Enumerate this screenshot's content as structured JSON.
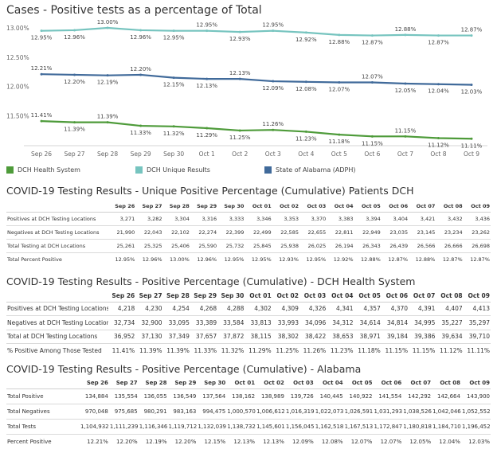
{
  "chart_title": "Cases - Positive tests as a percentage of Total",
  "chart_data": {
    "type": "line",
    "categories": [
      "Sep 26",
      "Sep 27",
      "Sep 28",
      "Sep 29",
      "Sep 30",
      "Oct 1",
      "Oct 2",
      "Oct 3",
      "Oct 4",
      "Oct 5",
      "Oct 6",
      "Oct 7",
      "Oct 8",
      "Oct 9"
    ],
    "ylabel": "",
    "y_ticks": [
      "13.00%",
      "12.50%",
      "12.00%",
      "11.50%"
    ],
    "ylim": [
      11.1,
      13.0
    ],
    "grid": false,
    "legend_position": "bottom",
    "series": [
      {
        "name": "DCH Unique Results",
        "color": "#76c4bf",
        "values": [
          12.95,
          12.96,
          13.0,
          12.96,
          12.95,
          12.95,
          12.93,
          12.95,
          12.92,
          12.88,
          12.87,
          12.88,
          12.87,
          12.87
        ],
        "labels": [
          "12.95%",
          "12.96%",
          "13.00%",
          "12.96%",
          "12.95%",
          "12.95%",
          "12.93%",
          "12.95%",
          "12.92%",
          "12.88%",
          "12.87%",
          "12.88%",
          "12.87%",
          "12.87%"
        ]
      },
      {
        "name": "State of Alabama (ADPH)",
        "color": "#406a9a",
        "values": [
          12.21,
          12.2,
          12.19,
          12.2,
          12.15,
          12.13,
          12.13,
          12.09,
          12.08,
          12.07,
          12.07,
          12.05,
          12.04,
          12.03
        ],
        "labels": [
          "12.21%",
          "12.20%",
          "12.19%",
          "12.20%",
          "12.15%",
          "12.13%",
          "12.13%",
          "12.09%",
          "12.08%",
          "12.07%",
          "12.07%",
          "12.05%",
          "12.04%",
          "12.03%"
        ]
      },
      {
        "name": "DCH Health System",
        "color": "#4e9b3a",
        "values": [
          11.41,
          11.39,
          11.39,
          11.33,
          11.32,
          11.29,
          11.25,
          11.26,
          11.23,
          11.18,
          11.15,
          11.15,
          11.12,
          11.11
        ],
        "labels": [
          "11.41%",
          "11.39%",
          "11.39%",
          "11.33%",
          "11.32%",
          "11.29%",
          "11.25%",
          "11.26%",
          "11.23%",
          "11.18%",
          "11.15%",
          "11.15%",
          "11.12%",
          "11.11%"
        ]
      }
    ]
  },
  "legend": [
    {
      "label": "DCH Health System",
      "color": "#4e9b3a"
    },
    {
      "label": "DCH Unique Results",
      "color": "#76c4bf"
    },
    {
      "label": "State of Alabama (ADPH)",
      "color": "#406a9a"
    }
  ],
  "tables": [
    {
      "title": "COVID-19 Testing Results - Unique Positive Percentage (Cumulative) Patients DCH",
      "columns": [
        "Sep 26",
        "Sep 27",
        "Sep 28",
        "Sep 29",
        "Sep 30",
        "Oct 01",
        "Oct 02",
        "Oct 03",
        "Oct 04",
        "Oct 05",
        "Oct 06",
        "Oct 07",
        "Oct 08",
        "Oct 09"
      ],
      "rows": [
        {
          "label": "Positives at DCH Testing Locations",
          "values": [
            "3,271",
            "3,282",
            "3,304",
            "3,316",
            "3,333",
            "3,346",
            "3,353",
            "3,370",
            "3,383",
            "3,394",
            "3,404",
            "3,421",
            "3,432",
            "3,436"
          ]
        },
        {
          "label": "Negatives at DCH Testing Locations",
          "values": [
            "21,990",
            "22,043",
            "22,102",
            "22,274",
            "22,399",
            "22,499",
            "22,585",
            "22,655",
            "22,811",
            "22,949",
            "23,035",
            "23,145",
            "23,234",
            "23,262"
          ]
        },
        {
          "label": "Total Testing at DCH Locations",
          "values": [
            "25,261",
            "25,325",
            "25,406",
            "25,590",
            "25,732",
            "25,845",
            "25,938",
            "26,025",
            "26,194",
            "26,343",
            "26,439",
            "26,566",
            "26,666",
            "26,698"
          ]
        },
        {
          "label": "Total Percent Positive",
          "values": [
            "12.95%",
            "12.96%",
            "13.00%",
            "12.96%",
            "12.95%",
            "12.95%",
            "12.93%",
            "12.95%",
            "12.92%",
            "12.88%",
            "12.87%",
            "12.88%",
            "12.87%",
            "12.87%"
          ]
        }
      ]
    },
    {
      "title": "COVID-19 Testing Results - Positive Percentage (Cumulative) - DCH Health System",
      "columns": [
        "Sep 26",
        "Sep 27",
        "Sep 28",
        "Sep 29",
        "Sep 30",
        "Oct 01",
        "Oct 02",
        "Oct 03",
        "Oct 04",
        "Oct 05",
        "Oct 06",
        "Oct 07",
        "Oct 08",
        "Oct 09"
      ],
      "rows": [
        {
          "label": "Positives at DCH Testing Locations",
          "values": [
            "4,218",
            "4,230",
            "4,254",
            "4,268",
            "4,288",
            "4,302",
            "4,309",
            "4,326",
            "4,341",
            "4,357",
            "4,370",
            "4,391",
            "4,407",
            "4,413"
          ]
        },
        {
          "label": "Negatives at DCH Testing Locations",
          "values": [
            "32,734",
            "32,900",
            "33,095",
            "33,389",
            "33,584",
            "33,813",
            "33,993",
            "34,096",
            "34,312",
            "34,614",
            "34,814",
            "34,995",
            "35,227",
            "35,297"
          ]
        },
        {
          "label": "Total at DCH Testing Locations",
          "values": [
            "36,952",
            "37,130",
            "37,349",
            "37,657",
            "37,872",
            "38,115",
            "38,302",
            "38,422",
            "38,653",
            "38,971",
            "39,184",
            "39,386",
            "39,634",
            "39,710"
          ]
        },
        {
          "label": "% Positive Among Those Tested",
          "values": [
            "11.41%",
            "11.39%",
            "11.39%",
            "11.33%",
            "11.32%",
            "11.29%",
            "11.25%",
            "11.26%",
            "11.23%",
            "11.18%",
            "11.15%",
            "11.15%",
            "11.12%",
            "11.11%"
          ]
        }
      ]
    },
    {
      "title": "COVID-19 Testing Results - Positive Percentage (Cumulative) - Alabama",
      "columns": [
        "Sep 26",
        "Sep 27",
        "Sep 28",
        "Sep 29",
        "Sep 30",
        "Oct 01",
        "Oct 02",
        "Oct 03",
        "Oct 04",
        "Oct 05",
        "Oct 06",
        "Oct 07",
        "Oct 08",
        "Oct 09"
      ],
      "rows": [
        {
          "label": "Total Positive",
          "values": [
            "134,884",
            "135,554",
            "136,055",
            "136,549",
            "137,564",
            "138,162",
            "138,989",
            "139,726",
            "140,445",
            "140,922",
            "141,554",
            "142,292",
            "142,664",
            "143,900"
          ]
        },
        {
          "label": "Total Negatives",
          "values": [
            "970,048",
            "975,685",
            "980,291",
            "983,163",
            "994,475",
            "1,000,570",
            "1,006,612",
            "1,016,319",
            "1,022,073",
            "1,026,591",
            "1,031,293",
            "1,038,526",
            "1,042,046",
            "1,052,552"
          ]
        },
        {
          "label": "Total Tests",
          "values": [
            "1,104,932",
            "1,111,239",
            "1,116,346",
            "1,119,712",
            "1,132,039",
            "1,138,732",
            "1,145,601",
            "1,156,045",
            "1,162,518",
            "1,167,513",
            "1,172,847",
            "1,180,818",
            "1,184,710",
            "1,196,452"
          ]
        },
        {
          "label": "Percent Positive",
          "values": [
            "12.21%",
            "12.20%",
            "12.19%",
            "12.20%",
            "12.15%",
            "12.13%",
            "12.13%",
            "12.09%",
            "12.08%",
            "12.07%",
            "12.07%",
            "12.05%",
            "12.04%",
            "12.03%"
          ]
        }
      ]
    }
  ]
}
